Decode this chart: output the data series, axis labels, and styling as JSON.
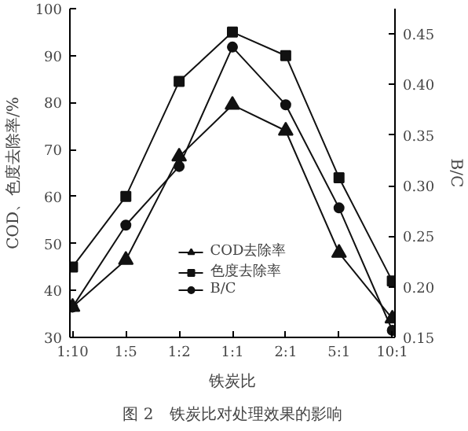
{
  "chart_data": {
    "type": "line",
    "xlabel": "铁炭比",
    "ylabel": "COD、色度去除率/%",
    "y2label": "B/C",
    "categories": [
      "1:10",
      "1:5",
      "1:2",
      "1:1",
      "2:1",
      "5:1",
      "10:1"
    ],
    "series": [
      {
        "name": "COD去除率",
        "color": "#111111",
        "marker": "triangle",
        "values": [
          36.5,
          46.5,
          68.5,
          79.5,
          74,
          48,
          34
        ]
      },
      {
        "name": "色度去除率",
        "color": "#111111",
        "marker": "square",
        "values": [
          45,
          60,
          84.5,
          95,
          90,
          64,
          42
        ]
      },
      {
        "name": "B/C",
        "color": "#111111",
        "marker": "circle",
        "axis": "y2",
        "values": [
          0.18,
          0.261,
          0.319,
          0.437,
          0.38,
          0.278,
          0.157
        ]
      }
    ],
    "ylim": [
      30,
      100
    ],
    "yticks": [
      30,
      40,
      50,
      60,
      70,
      80,
      90,
      100
    ],
    "y2lim": [
      0.15,
      0.475
    ],
    "y2ticks": [
      {
        "value": 0.15,
        "label": "0.15"
      },
      {
        "value": 0.2,
        "label": "0.20"
      },
      {
        "value": 0.25,
        "label": "0.25"
      },
      {
        "value": 0.3,
        "label": "0.30"
      },
      {
        "value": 0.35,
        "label": "0.35"
      },
      {
        "value": 0.4,
        "label": "0.40"
      },
      {
        "value": 0.45,
        "label": "0.45"
      }
    ],
    "grid": false,
    "legend": "bottom",
    "annotations": [
      "图 2　铁炭比对处理效果的影响"
    ]
  }
}
